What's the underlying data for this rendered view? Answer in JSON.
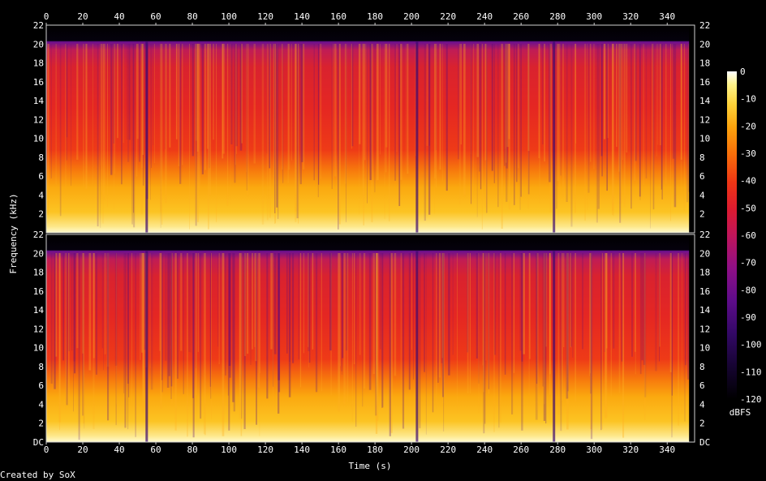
{
  "chart_data": {
    "type": "heatmap",
    "subtype": "spectrogram",
    "channels": 2,
    "xlabel": "Time (s)",
    "ylabel": "Frequency (kHz)",
    "xlim": [
      0,
      355
    ],
    "x_ticks": [
      0,
      20,
      40,
      60,
      80,
      100,
      120,
      140,
      160,
      180,
      200,
      220,
      240,
      260,
      280,
      300,
      320,
      340
    ],
    "ylim_khz": [
      0,
      22
    ],
    "y_ticks_top": [
      "22",
      "20",
      "18",
      "16",
      "14",
      "12",
      "10",
      "8",
      "6",
      "4",
      "2"
    ],
    "y_ticks_bottom": [
      "22",
      "20",
      "18",
      "16",
      "14",
      "12",
      "10",
      "8",
      "6",
      "4",
      "2",
      "DC"
    ],
    "y_tick_values_top": [
      22,
      20,
      18,
      16,
      14,
      12,
      10,
      8,
      6,
      4,
      2
    ],
    "y_tick_values_bottom": [
      22,
      20,
      18,
      16,
      14,
      12,
      10,
      8,
      6,
      4,
      2,
      0
    ],
    "content_cutoff_khz": 20,
    "colorbar": {
      "label": "dBFS",
      "range": [
        -120,
        0
      ],
      "ticks": [
        "0",
        "-10",
        "-20",
        "-30",
        "-40",
        "-50",
        "-60",
        "-70",
        "-80",
        "-90",
        "-100",
        "-110",
        "-120"
      ],
      "tick_values": [
        0,
        -10,
        -20,
        -30,
        -40,
        -50,
        -60,
        -70,
        -80,
        -90,
        -100,
        -110,
        -120
      ],
      "colors": [
        "#000000",
        "#1a0440",
        "#3d0a7a",
        "#7a0f8e",
        "#b0146e",
        "#d8183a",
        "#ef2d14",
        "#f86a0a",
        "#fca10c",
        "#fdd430",
        "#fff27a",
        "#ffffff"
      ]
    },
    "dips_s": [
      55,
      203,
      278
    ],
    "end_s": 352
  },
  "footer": {
    "credit": "Created by SoX"
  }
}
